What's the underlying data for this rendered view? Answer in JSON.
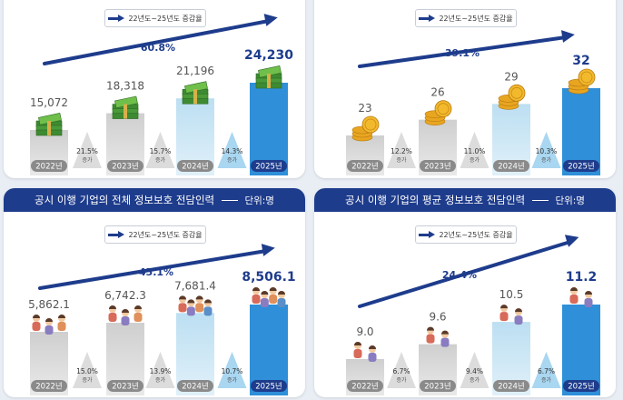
{
  "legend_label": "22년도~25년도 증감율",
  "unit_label": "단위:명",
  "colors": {
    "accent": "#1e3c8c",
    "bar_2025": "#2f8fd8",
    "bar_2024": "#bcdff2",
    "bar_old": "#cfcfcf"
  },
  "chart_data": [
    {
      "type": "bar",
      "title": "",
      "categories": [
        "2022년",
        "2023년",
        "2024년",
        "2025년"
      ],
      "values": [
        15072,
        18318,
        21196,
        24230
      ],
      "value_labels": [
        "15,072",
        "18,318",
        "21,196",
        "24,230"
      ],
      "growth": [
        "21.5%",
        "15.7%",
        "14.3%"
      ],
      "growth_suffix": "증가",
      "overall": "60.8%",
      "icon": "money-stack-icon"
    },
    {
      "type": "bar",
      "title": "",
      "categories": [
        "2022년",
        "2023년",
        "2024년",
        "2025년"
      ],
      "values": [
        23,
        26,
        29,
        32
      ],
      "value_labels": [
        "23",
        "26",
        "29",
        "32"
      ],
      "growth": [
        "12.2%",
        "11.0%",
        "10.3%"
      ],
      "growth_suffix": "증가",
      "overall": "39.1%",
      "icon": "coin-stack-icon"
    },
    {
      "type": "bar",
      "title": "공시 이행 기업의 전체 정보보호 전담인력",
      "categories": [
        "2022년",
        "2023년",
        "2024년",
        "2025년"
      ],
      "values": [
        5862.1,
        6742.3,
        7681.4,
        8506.1
      ],
      "value_labels": [
        "5,862.1",
        "6,742.3",
        "7,681.4",
        "8,506.1"
      ],
      "growth": [
        "15.0%",
        "13.9%",
        "10.7%"
      ],
      "growth_suffix": "증가",
      "overall": "45.1%",
      "icon": "people-group-icon"
    },
    {
      "type": "bar",
      "title": "공시 이행 기업의 평균 정보보호 전담인력",
      "categories": [
        "2022년",
        "2023년",
        "2024년",
        "2025년"
      ],
      "values": [
        9.0,
        9.6,
        10.5,
        11.2
      ],
      "value_labels": [
        "9.0",
        "9.6",
        "10.5",
        "11.2"
      ],
      "growth": [
        "6.7%",
        "9.4%",
        "6.7%"
      ],
      "growth_suffix": "증가",
      "overall": "24.4%",
      "icon": "people-pair-icon"
    }
  ]
}
